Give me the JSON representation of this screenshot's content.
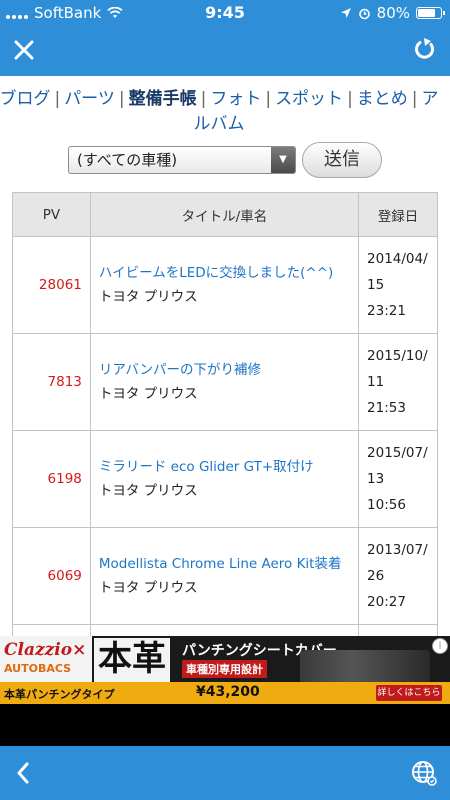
{
  "status_bar": {
    "carrier": "SoftBank",
    "time": "9:45",
    "battery": "80%",
    "battery_level": 0.8
  },
  "nav": {
    "close_icon": "close-icon",
    "reload_icon": "reload-icon"
  },
  "categories": [
    {
      "label": "ブログ",
      "current": false
    },
    {
      "label": "パーツ",
      "current": false
    },
    {
      "label": "整備手帳",
      "current": true
    },
    {
      "label": "フォト",
      "current": false
    },
    {
      "label": "スポット",
      "current": false
    },
    {
      "label": "まとめ",
      "current": false
    },
    {
      "label": "アルバム",
      "current": false
    }
  ],
  "filter": {
    "selected": "(すべての車種)",
    "submit_label": "送信"
  },
  "table": {
    "headers": {
      "pv": "PV",
      "title": "タイトル/車名",
      "date": "登録日"
    },
    "rows": [
      {
        "pv": "28061",
        "title": "ハイビームをLEDに交換しました(^^)",
        "car": "トヨタ プリウス",
        "date_1": "2014/04/",
        "date_2": "15",
        "date_3": "23:21"
      },
      {
        "pv": "7813",
        "title": "リアバンパーの下がり補修",
        "car": "トヨタ プリウス",
        "date_1": "2015/10/",
        "date_2": "11",
        "date_3": "21:53"
      },
      {
        "pv": "6198",
        "title": "ミラリード eco Glider GT+取付け",
        "car": "トヨタ プリウス",
        "date_1": "2015/07/",
        "date_2": "13",
        "date_3": "10:56"
      },
      {
        "pv": "6069",
        "title": "Modellista Chrome Line Aero Kit装着",
        "car": "トヨタ プリウス",
        "date_1": "2013/07/",
        "date_2": "26",
        "date_3": "20:27"
      }
    ]
  },
  "ad": {
    "brand": "Clazzio×",
    "brand_sub": "AUTOBACS",
    "big_text": "本革",
    "headline": "パンチングシートカバー",
    "subline": "車種別専用設計",
    "type_text": "本革パンチングタイプ",
    "price": "¥43,200",
    "detail_button": "詳しくはこちら▶",
    "info_icon": "info-icon"
  },
  "bottom_bar": {
    "back_icon": "back-chevron-icon",
    "globe_icon": "globe-icon"
  },
  "colors": {
    "bar_blue": "#2e8fd8",
    "link_blue": "#1e75c8",
    "pv_red": "#d31a1a"
  }
}
